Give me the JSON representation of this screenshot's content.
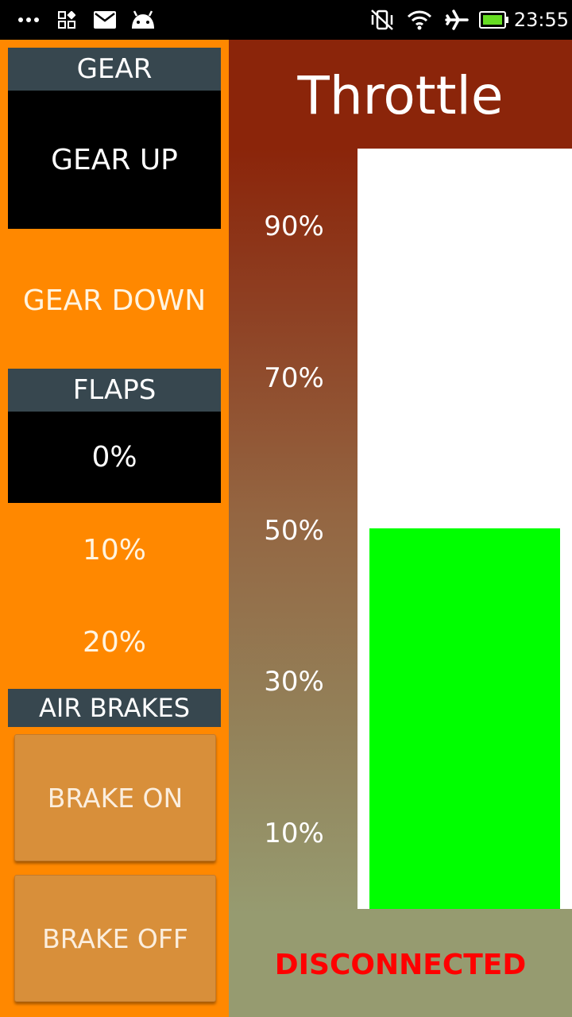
{
  "status_bar": {
    "time": "23:55",
    "icons": [
      "more-dots-icon",
      "apps-grid-icon",
      "mail-icon",
      "android-icon",
      "vibrate-off-icon",
      "wifi-icon",
      "airplane-mode-icon",
      "battery-icon"
    ]
  },
  "gear": {
    "header": "GEAR",
    "selected": "GEAR UP",
    "other": "GEAR DOWN"
  },
  "flaps": {
    "header": "FLAPS",
    "selected": "0%",
    "options": [
      "10%",
      "20%"
    ]
  },
  "air_brakes": {
    "header": "AIR BRAKES",
    "brake_on": "BRAKE ON",
    "brake_off": "BRAKE OFF"
  },
  "throttle": {
    "title": "Throttle",
    "ticks": [
      "90%",
      "70%",
      "50%",
      "30%",
      "10%"
    ],
    "level": 0.5
  },
  "connection_status": "DISCONNECTED",
  "colors": {
    "left_panel": "#ff8800",
    "header_bg": "#37474f",
    "throttle_fill": "#00ff00",
    "status_text": "#ff0000"
  }
}
